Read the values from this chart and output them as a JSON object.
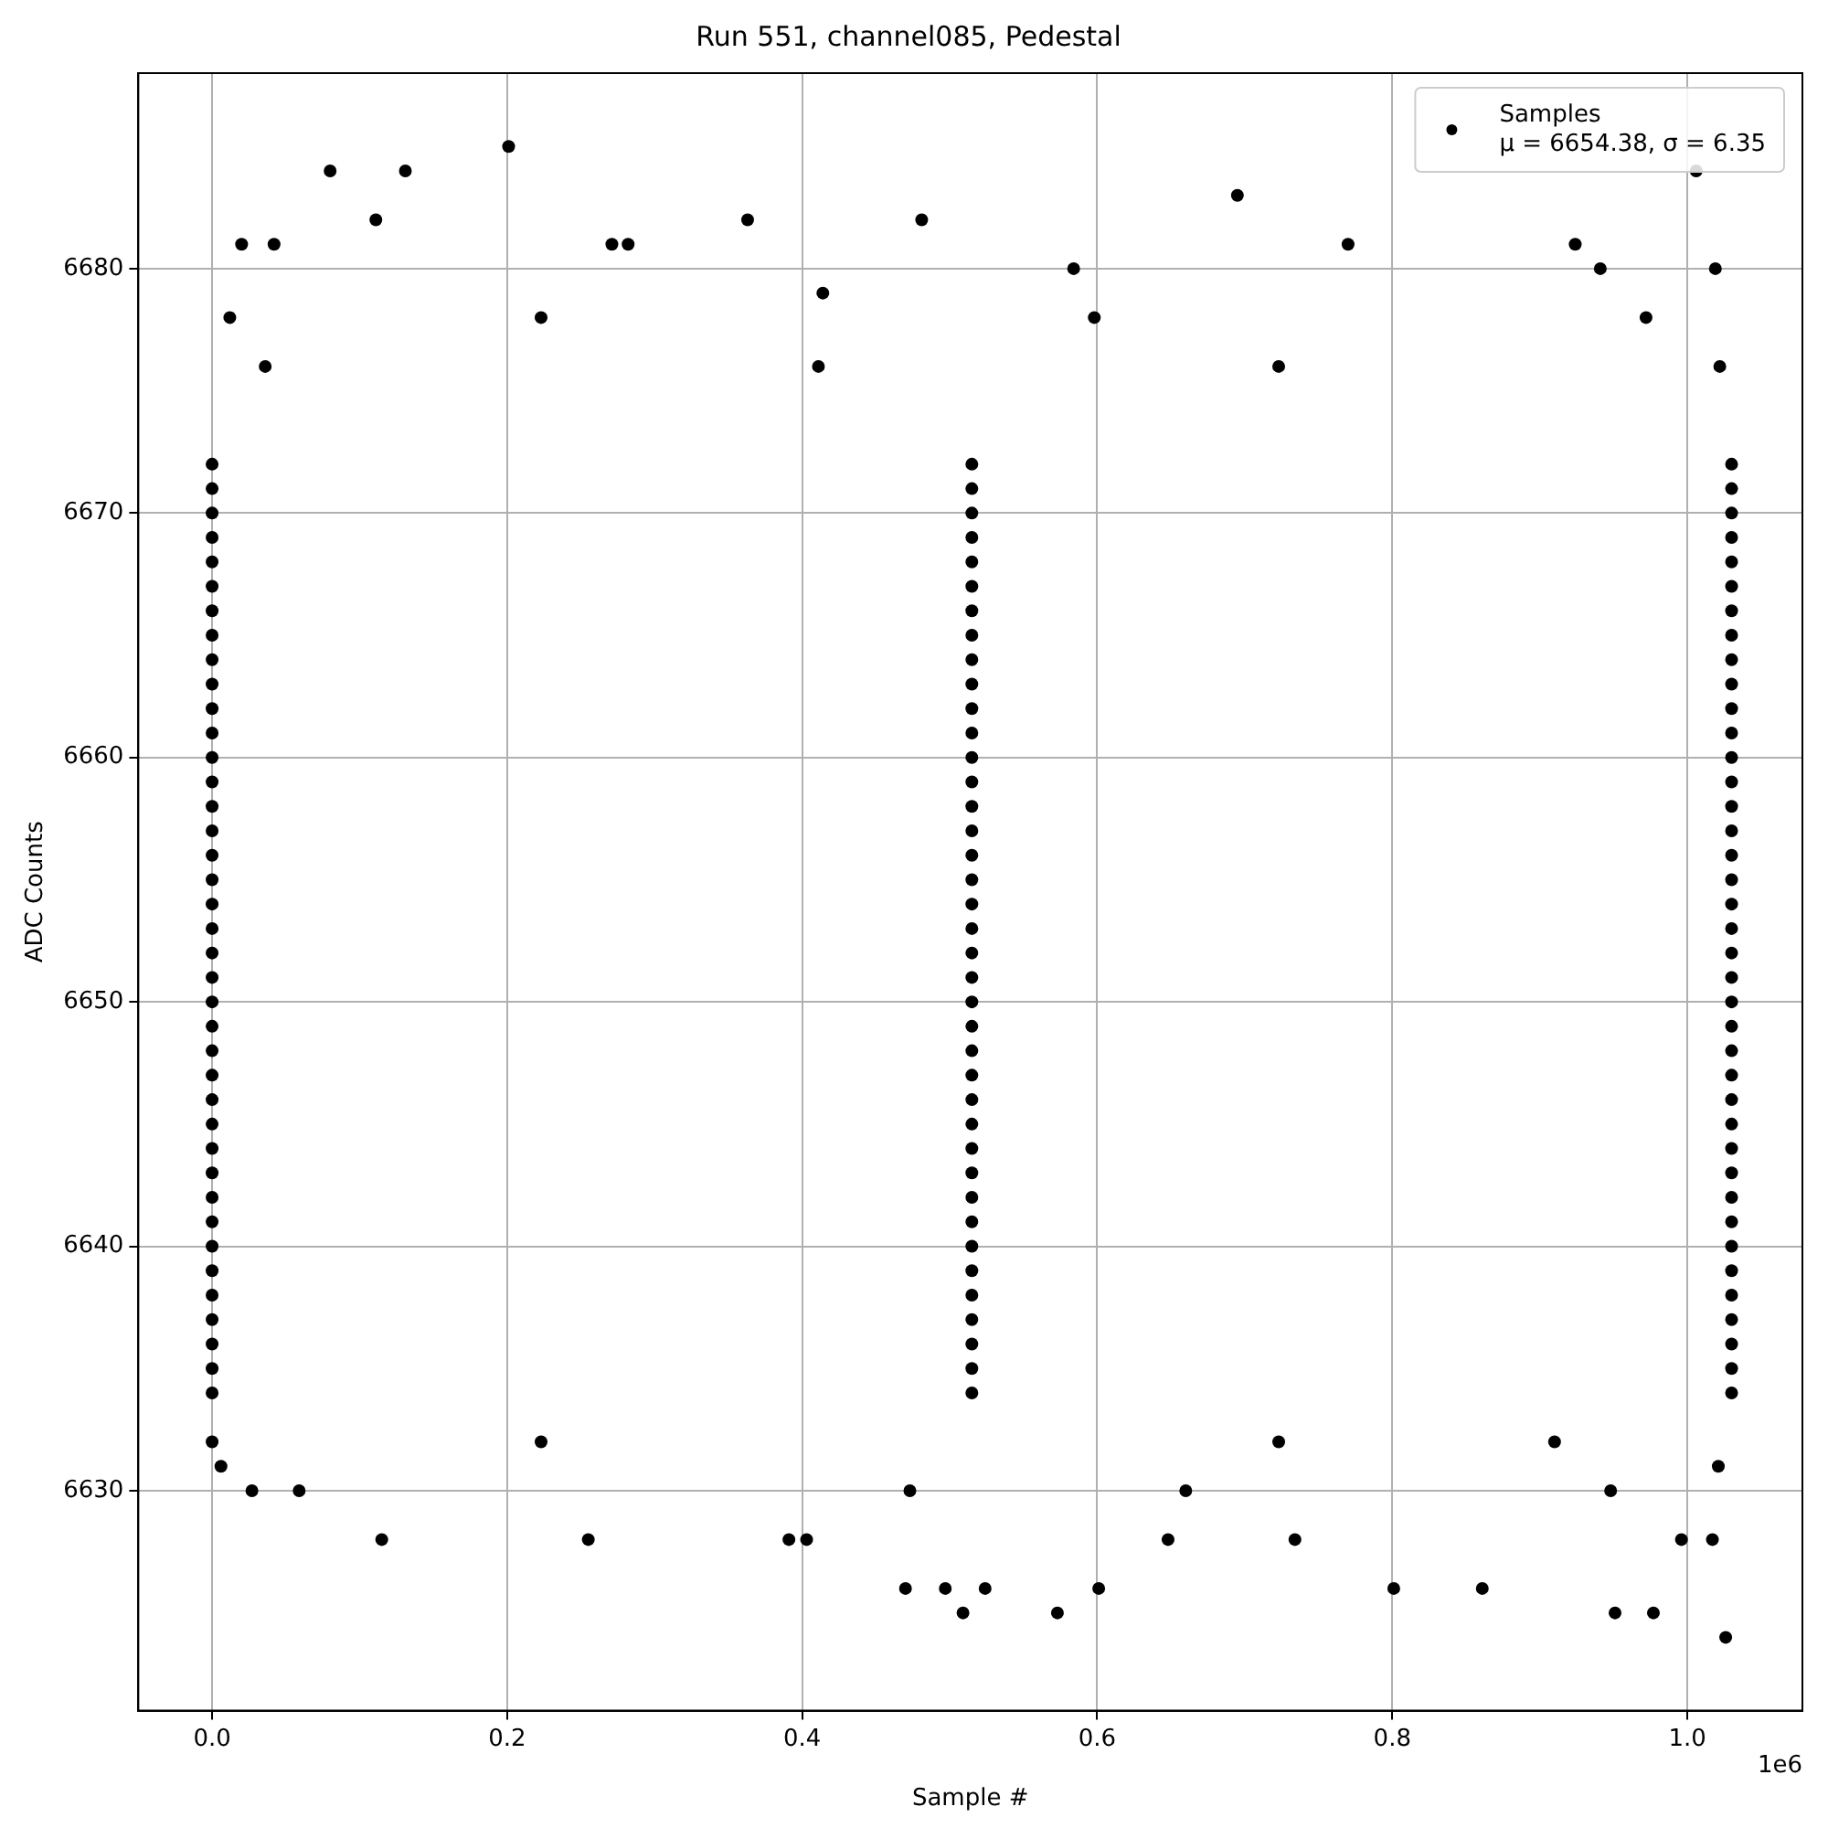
{
  "chart_data": {
    "type": "scatter",
    "title": "Run 551, channel085, Pedestal",
    "xlabel": "Sample #",
    "ylabel": "ADC Counts",
    "xlim": [
      -0.05,
      1.078
    ],
    "xticks": [
      {
        "value": 0,
        "label": "0.0"
      },
      0.2,
      0.4,
      0.6,
      0.8,
      {
        "value": 1,
        "label": "1.0"
      }
    ],
    "ylim": [
      6621,
      6688
    ],
    "yticks": [
      6630,
      6640,
      6650,
      6660,
      6670,
      6680
    ],
    "grid": true,
    "legend": "top right",
    "marker": "circle",
    "annotations": [
      "1e6"
    ],
    "series": [
      {
        "name": "Samples\nμ = 6654.38, σ = 6.35",
        "color": "#000000",
        "x": [
          0,
          0,
          0,
          0,
          0,
          0,
          0,
          0,
          0,
          0,
          0,
          0,
          0,
          0,
          0,
          0,
          0,
          0,
          0,
          0,
          0,
          0,
          0,
          0,
          0,
          0,
          0,
          0,
          0,
          0,
          0,
          0,
          0,
          0,
          0,
          0,
          0,
          0,
          0,
          0.515,
          0.515,
          0.515,
          0.515,
          0.515,
          0.515,
          0.515,
          0.515,
          0.515,
          0.515,
          0.515,
          0.515,
          0.515,
          0.515,
          0.515,
          0.515,
          0.515,
          0.515,
          0.515,
          0.515,
          0.515,
          0.515,
          0.515,
          0.515,
          0.515,
          0.515,
          0.515,
          0.515,
          0.515,
          0.515,
          0.515,
          0.515,
          0.515,
          0.515,
          0.515,
          0.515,
          0.515,
          0.515,
          0.515,
          1.03,
          1.03,
          1.03,
          1.03,
          1.03,
          1.03,
          1.03,
          1.03,
          1.03,
          1.03,
          1.03,
          1.03,
          1.03,
          1.03,
          1.03,
          1.03,
          1.03,
          1.03,
          1.03,
          1.03,
          1.03,
          1.03,
          1.03,
          1.03,
          1.03,
          1.03,
          1.03,
          1.03,
          1.03,
          1.03,
          1.03,
          1.03,
          1.03,
          1.03,
          1.03,
          1.03,
          1.03,
          1.03,
          1.03,
          0.08,
          0.131,
          0.201,
          0.363,
          0.481,
          0.111,
          0.695,
          1.006,
          0.924,
          0.941,
          0.77,
          0.02,
          0.042,
          0.271,
          0.282,
          0.414,
          1.019,
          0.584,
          1.026,
          0.951,
          0.977,
          0.573,
          0.509,
          0.524,
          0.497,
          0.47,
          0.601,
          0.801,
          0.861,
          0.115,
          0.255,
          0.391,
          0.403,
          0.996,
          1.017,
          0.734,
          0.648,
          0.006,
          0.027,
          0.059,
          0,
          1.021,
          0.012,
          0.223,
          0.598,
          0.972,
          0.036,
          0.411,
          0.723,
          1.022,
          0.223,
          0.723,
          0.91,
          0.473,
          0.66,
          0.948
        ],
        "values": [
          6634,
          6635,
          6636,
          6637,
          6638,
          6639,
          6640,
          6641,
          6642,
          6643,
          6644,
          6645,
          6646,
          6647,
          6648,
          6649,
          6650,
          6651,
          6652,
          6653,
          6654,
          6655,
          6656,
          6657,
          6658,
          6659,
          6660,
          6661,
          6662,
          6663,
          6664,
          6665,
          6666,
          6667,
          6668,
          6669,
          6670,
          6671,
          6672,
          6634,
          6635,
          6636,
          6637,
          6638,
          6639,
          6640,
          6641,
          6642,
          6643,
          6644,
          6645,
          6646,
          6647,
          6648,
          6649,
          6650,
          6651,
          6652,
          6653,
          6654,
          6655,
          6656,
          6657,
          6658,
          6659,
          6660,
          6661,
          6662,
          6663,
          6664,
          6665,
          6666,
          6667,
          6668,
          6669,
          6670,
          6671,
          6672,
          6634,
          6635,
          6636,
          6637,
          6638,
          6639,
          6640,
          6641,
          6642,
          6643,
          6644,
          6645,
          6646,
          6647,
          6648,
          6649,
          6650,
          6651,
          6652,
          6653,
          6654,
          6655,
          6656,
          6657,
          6658,
          6659,
          6660,
          6661,
          6662,
          6663,
          6664,
          6665,
          6666,
          6667,
          6668,
          6669,
          6670,
          6671,
          6672,
          6684,
          6684,
          6685,
          6682,
          6682,
          6682,
          6683,
          6684,
          6681,
          6680,
          6681,
          6681,
          6681,
          6681,
          6681,
          6679,
          6680,
          6680,
          6624,
          6625,
          6625,
          6625,
          6625,
          6626,
          6626,
          6626,
          6626,
          6626,
          6626,
          6628,
          6628,
          6628,
          6628,
          6628,
          6628,
          6628,
          6628,
          6631,
          6630,
          6630,
          6632,
          6631,
          6678,
          6678,
          6678,
          6678,
          6676,
          6676,
          6676,
          6676,
          6632,
          6632,
          6632,
          6630,
          6630,
          6630
        ]
      }
    ]
  }
}
